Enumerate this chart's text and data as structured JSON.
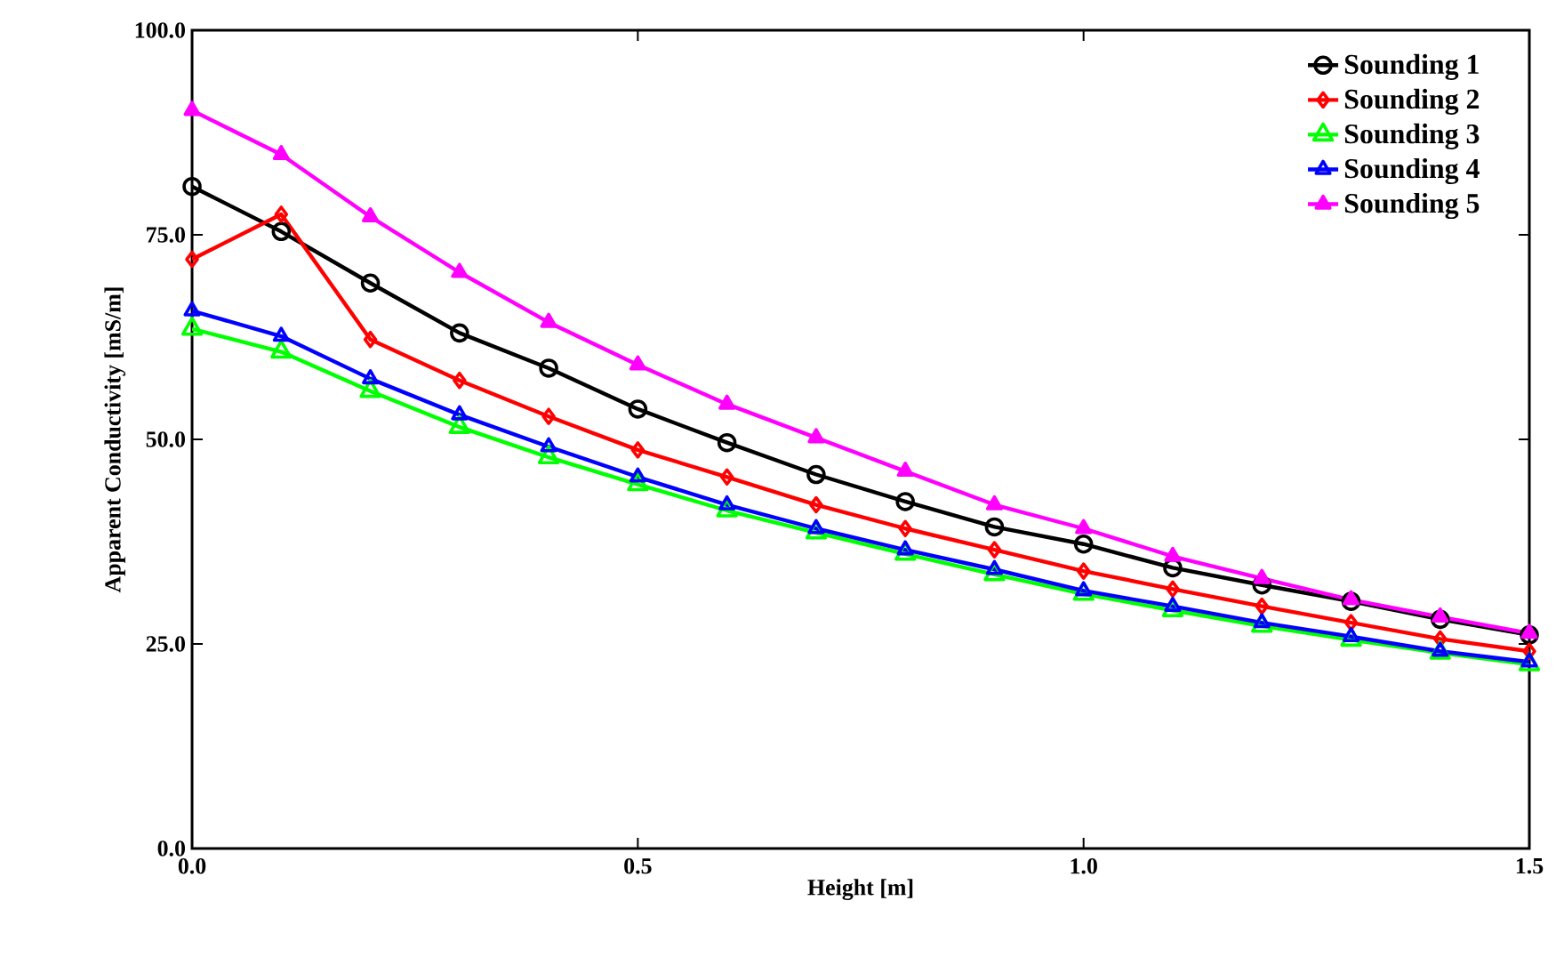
{
  "chart_data": {
    "type": "line",
    "xlabel": "Height [m]",
    "ylabel": "Apparent Conductivity [mS/m]",
    "x": [
      0,
      0.1,
      0.2,
      0.3,
      0.4,
      0.5,
      0.6,
      0.7,
      0.8,
      0.9,
      1.0,
      1.1,
      1.2,
      1.3,
      1.4,
      1.5
    ],
    "series": [
      {
        "name": "Sounding 1",
        "color": "#000000",
        "marker": "circle",
        "values": [
          80.9,
          75.4,
          69.1,
          63.0,
          58.7,
          53.7,
          49.6,
          45.7,
          42.4,
          39.3,
          37.2,
          34.3,
          32.2,
          30.2,
          28.0,
          26.1
        ]
      },
      {
        "name": "Sounding 2",
        "color": "#ff0000",
        "marker": "diamond",
        "values": [
          72.0,
          77.5,
          62.2,
          57.2,
          52.8,
          48.7,
          45.4,
          42.0,
          39.1,
          36.5,
          33.9,
          31.7,
          29.6,
          27.6,
          25.6,
          24.1
        ]
      },
      {
        "name": "Sounding 3",
        "color": "#00ff00",
        "marker": "triangle",
        "values": [
          63.5,
          60.7,
          55.9,
          51.5,
          47.8,
          44.5,
          41.3,
          38.6,
          36.0,
          33.5,
          31.1,
          29.1,
          27.2,
          25.5,
          23.9,
          22.5
        ]
      },
      {
        "name": "Sounding 4",
        "color": "#0000ff",
        "marker": "triangle-left",
        "values": [
          65.7,
          62.6,
          57.4,
          53.0,
          49.1,
          45.4,
          42.0,
          39.1,
          36.5,
          34.1,
          31.5,
          29.6,
          27.6,
          25.9,
          24.1,
          22.8
        ]
      },
      {
        "name": "Sounding 5",
        "color": "#ff00ff",
        "marker": "triangle-right",
        "values": [
          90.2,
          84.8,
          77.2,
          70.4,
          64.3,
          59.1,
          54.3,
          50.2,
          46.1,
          42.0,
          39.1,
          35.7,
          33.0,
          30.4,
          28.3,
          26.3
        ]
      }
    ],
    "xlim": [
      0,
      1.5
    ],
    "ylim": [
      0,
      100
    ],
    "xticks": [
      {
        "value": 0,
        "label": "0.0"
      },
      {
        "value": 0.5,
        "label": "0.5"
      },
      {
        "value": 1.0,
        "label": "1.0"
      },
      {
        "value": 1.5,
        "label": "1.5"
      }
    ],
    "yticks": [
      {
        "value": 0,
        "label": "0.0"
      },
      {
        "value": 25,
        "label": "25.0"
      },
      {
        "value": 50,
        "label": "50.0"
      },
      {
        "value": 75,
        "label": "75.0"
      },
      {
        "value": 100,
        "label": "100.0"
      }
    ],
    "legend": "top right",
    "grid": false,
    "line_style": "solid"
  }
}
